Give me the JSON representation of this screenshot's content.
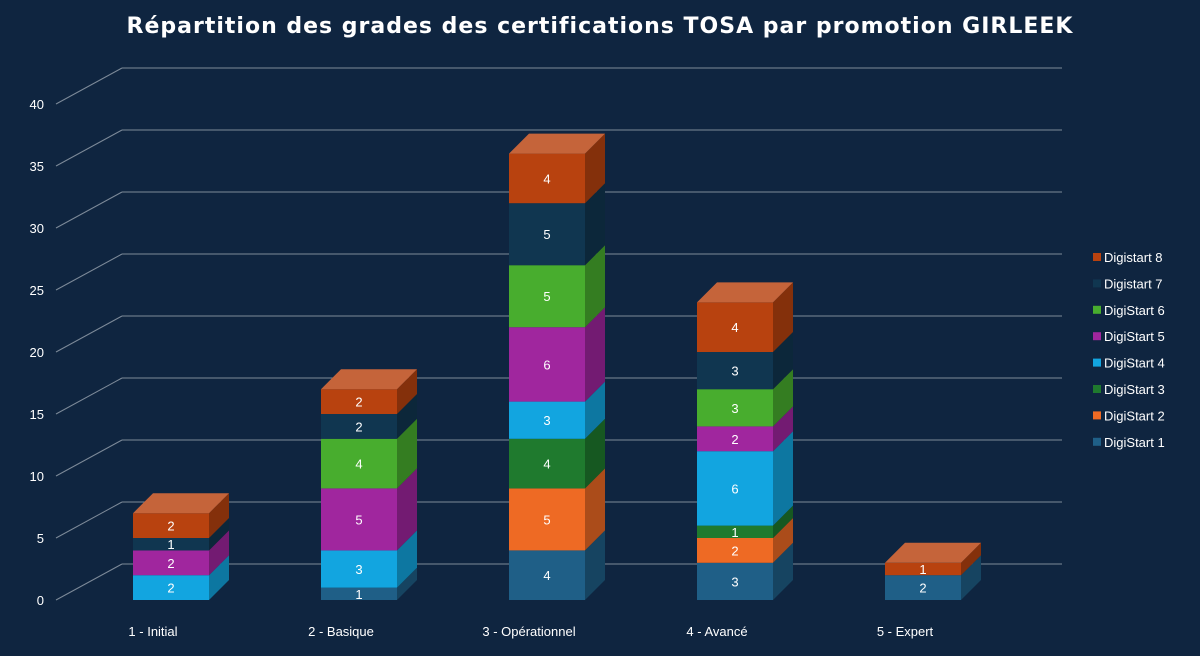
{
  "chart_data": {
    "type": "bar",
    "stacked": true,
    "three_d": true,
    "title": "Répartition des grades des certifications TOSA par promotion GIRLEEK",
    "categories": [
      "1 - Initial",
      "2 - Basique",
      "3 - Opérationnel",
      "4 - Avancé",
      "5 - Expert"
    ],
    "series": [
      {
        "name": "DigiStart 1",
        "color": "#1f5f87",
        "values": [
          0,
          1,
          4,
          3,
          2
        ]
      },
      {
        "name": "DigiStart 2",
        "color": "#ee6a24",
        "values": [
          0,
          0,
          5,
          2,
          0
        ]
      },
      {
        "name": "DigiStart 3",
        "color": "#1f7a2e",
        "values": [
          0,
          0,
          4,
          1,
          0
        ]
      },
      {
        "name": "DigiStart 4",
        "color": "#12a5e0",
        "values": [
          2,
          3,
          3,
          6,
          0
        ]
      },
      {
        "name": "DigiStart 5",
        "color": "#a0269e",
        "values": [
          2,
          5,
          6,
          2,
          0
        ]
      },
      {
        "name": "DigiStart 6",
        "color": "#48ad2e",
        "values": [
          0,
          4,
          5,
          3,
          0
        ]
      },
      {
        "name": "Digistart 7",
        "color": "#103650",
        "values": [
          1,
          2,
          5,
          3,
          0
        ]
      },
      {
        "name": "Digistart 8",
        "color": "#b8420f",
        "values": [
          2,
          2,
          4,
          4,
          1
        ]
      }
    ],
    "ylim": [
      0,
      40
    ],
    "yticks": [
      0,
      5,
      10,
      15,
      20,
      25,
      30,
      35,
      40
    ],
    "grid": true,
    "legend": "right"
  }
}
